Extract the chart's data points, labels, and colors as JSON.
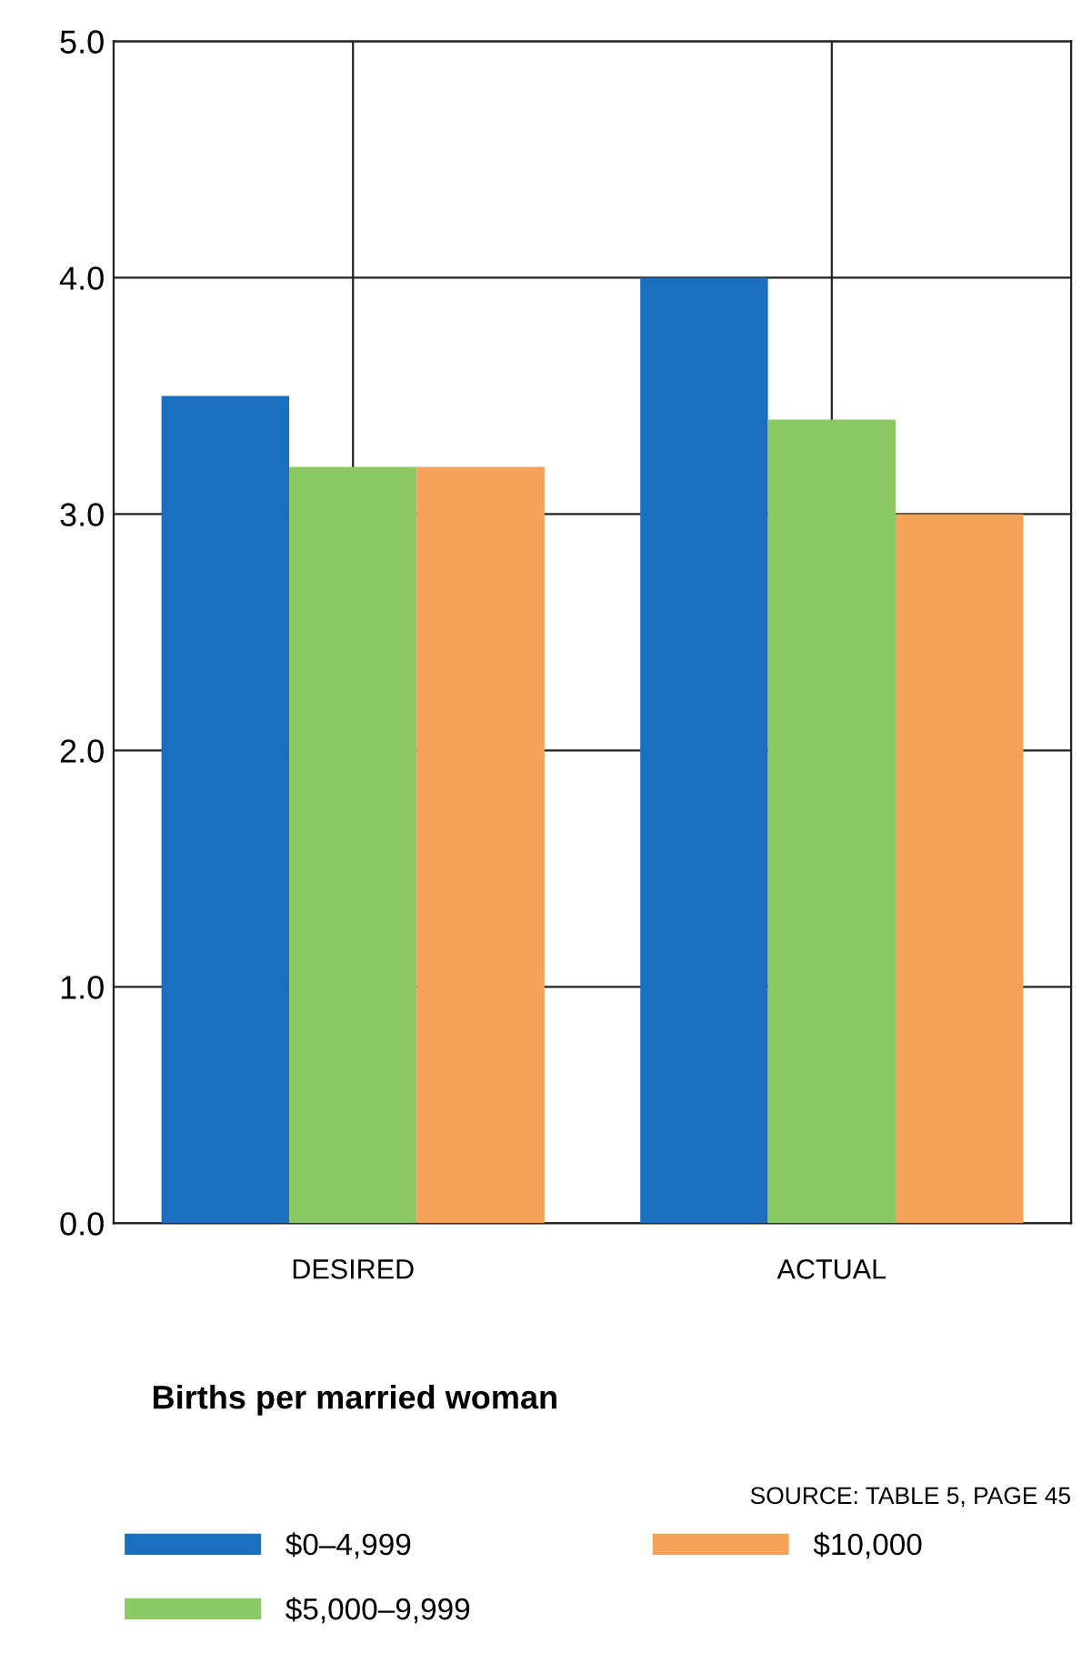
{
  "chart_data": {
    "type": "bar",
    "title": "Births per married woman",
    "categories": [
      "DESIRED",
      "ACTUAL"
    ],
    "series": [
      {
        "name": "$0–4,999",
        "color": "#1a6fbf",
        "values": [
          3.5,
          4.0
        ]
      },
      {
        "name": "$5,000–9,999",
        "color": "#8cc963",
        "values": [
          3.2,
          3.4
        ]
      },
      {
        "name": "$10,000",
        "color": "#f6a25a",
        "values": [
          3.2,
          3.0
        ]
      }
    ],
    "ylim": [
      0,
      5
    ],
    "yticks": [
      {
        "value": 0,
        "label": "0.0"
      },
      {
        "value": 1,
        "label": "1.0"
      },
      {
        "value": 2,
        "label": "2.0"
      },
      {
        "value": 3,
        "label": "3.0"
      },
      {
        "value": 4,
        "label": "4.0"
      },
      {
        "value": 5,
        "label": "5.0"
      }
    ],
    "grid": true,
    "legend": "bottom",
    "annotations": [
      "SOURCE: TABLE 5, PAGE 45"
    ]
  }
}
